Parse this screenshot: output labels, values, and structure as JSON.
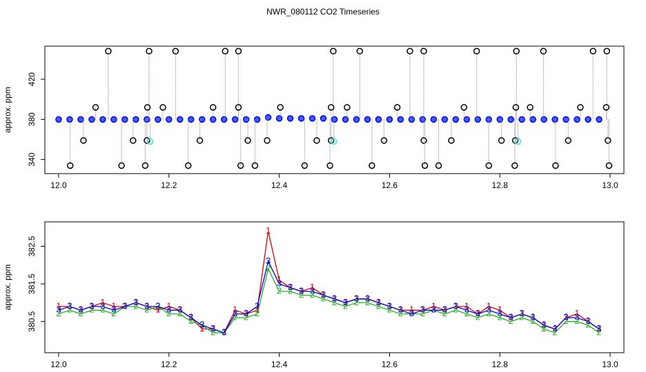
{
  "chart_data": [
    {
      "type": "scatter",
      "title": "NWR_080112  CO2 Timeseries",
      "y_label": "approx. ppm",
      "xlim": [
        11.975,
        13.025
      ],
      "ylim": [
        326,
        453
      ],
      "xticks": [
        {
          "value": 12,
          "label": "12.0"
        },
        12.2,
        12.4,
        12.6,
        12.8,
        {
          "value": 13,
          "label": "13.0"
        }
      ],
      "yticks": [
        340,
        380,
        420
      ],
      "series": [
        {
          "color": "#0000ff",
          "x": [
            12.0,
            12.02,
            12.04,
            12.06,
            12.08,
            12.1,
            12.12,
            12.14,
            12.16,
            12.18,
            12.2,
            12.22,
            12.24,
            12.26,
            12.28,
            12.3,
            12.32,
            12.34,
            12.36,
            12.38,
            12.4,
            12.42,
            12.44,
            12.46,
            12.48,
            12.5,
            12.52,
            12.54,
            12.56,
            12.58,
            12.6,
            12.62,
            12.64,
            12.66,
            12.68,
            12.7,
            12.72,
            12.74,
            12.76,
            12.78,
            12.8,
            12.82,
            12.84,
            12.86,
            12.88,
            12.9,
            12.92,
            12.94,
            12.96,
            12.98
          ],
          "values": [
            380,
            380,
            380,
            380,
            380,
            380,
            380,
            380,
            380,
            380,
            380,
            380,
            380,
            380,
            380,
            380,
            380,
            380,
            380,
            382,
            381,
            381,
            381,
            381,
            381,
            380,
            380,
            380,
            380,
            380,
            380,
            380,
            380,
            380,
            380,
            380,
            380,
            380,
            380,
            380,
            380,
            380,
            380,
            380,
            380,
            380,
            380,
            380,
            380,
            380
          ]
        },
        {
          "color": "#000000",
          "x": [
            12.09,
            12.164,
            12.212,
            12.302,
            12.326,
            12.498,
            12.546,
            12.637,
            12.662,
            12.758,
            12.83,
            12.879,
            12.969,
            12.994,
            12.067,
            12.161,
            12.189,
            12.28,
            12.326,
            12.402,
            12.494,
            12.523,
            12.614,
            12.735,
            12.829,
            12.855,
            12.946,
            12.993,
            12.045,
            12.135,
            12.16,
            12.256,
            12.343,
            12.378,
            12.468,
            12.494,
            12.59,
            12.662,
            12.712,
            12.803,
            12.828,
            12.924,
            12.996,
            12.021,
            12.114,
            12.157,
            12.235,
            12.33,
            12.356,
            12.446,
            12.492,
            12.568,
            12.664,
            12.689,
            12.78,
            12.827,
            12.901,
            12.998
          ],
          "values": [
            448,
            448,
            448,
            448,
            448,
            448,
            448,
            448,
            448,
            448,
            448,
            448,
            448,
            448,
            392,
            392,
            392,
            392,
            392,
            392,
            392,
            392,
            392,
            392,
            392,
            392,
            392,
            392,
            359,
            359,
            359,
            359,
            359,
            359,
            359,
            359,
            359,
            359,
            359,
            359,
            359,
            359,
            359,
            334,
            334,
            334,
            334,
            334,
            334,
            334,
            334,
            334,
            334,
            334,
            334,
            334,
            334,
            334
          ]
        },
        {
          "color": "#40e0e0",
          "x": [
            12.166,
            12.499,
            12.833
          ],
          "values": [
            358,
            358,
            358
          ]
        }
      ]
    },
    {
      "type": "line",
      "y_label": "approx. ppm",
      "xlim": [
        11.975,
        13.025
      ],
      "ylim": [
        379.67,
        383.15
      ],
      "xticks": [
        {
          "value": 12,
          "label": "12.0"
        },
        12.2,
        12.4,
        12.6,
        12.8,
        {
          "value": 13,
          "label": "13.0"
        }
      ],
      "yticks": [
        380.5,
        381.5,
        382.5
      ],
      "x": [
        12.0,
        12.02,
        12.04,
        12.06,
        12.08,
        12.1,
        12.12,
        12.14,
        12.16,
        12.18,
        12.2,
        12.22,
        12.24,
        12.26,
        12.28,
        12.3,
        12.32,
        12.34,
        12.36,
        12.38,
        12.4,
        12.42,
        12.44,
        12.46,
        12.48,
        12.5,
        12.52,
        12.54,
        12.56,
        12.58,
        12.6,
        12.62,
        12.64,
        12.66,
        12.68,
        12.7,
        12.72,
        12.74,
        12.76,
        12.78,
        12.8,
        12.82,
        12.84,
        12.86,
        12.88,
        12.9,
        12.92,
        12.94,
        12.96,
        12.98
      ],
      "series": [
        {
          "marker": "1",
          "color": "#e00000",
          "values": [
            380.9,
            380.9,
            380.8,
            380.9,
            381.0,
            380.9,
            380.9,
            381.0,
            380.9,
            380.8,
            380.9,
            380.8,
            380.6,
            380.3,
            380.3,
            380.2,
            380.8,
            380.7,
            380.8,
            382.9,
            381.6,
            381.4,
            381.3,
            381.4,
            381.2,
            381.1,
            381.0,
            381.1,
            381.1,
            381.0,
            380.9,
            380.8,
            380.8,
            380.8,
            380.9,
            380.8,
            380.9,
            380.9,
            380.7,
            380.9,
            380.8,
            380.6,
            380.7,
            380.6,
            380.4,
            380.3,
            380.6,
            380.7,
            380.5,
            380.3
          ]
        },
        {
          "marker": "2",
          "color": "#20b020",
          "values": [
            380.7,
            380.8,
            380.7,
            380.8,
            380.8,
            380.7,
            380.9,
            380.9,
            380.8,
            380.9,
            380.7,
            380.7,
            380.5,
            380.4,
            380.2,
            380.2,
            380.6,
            380.6,
            380.7,
            381.9,
            381.3,
            381.3,
            381.2,
            381.2,
            381.1,
            381.0,
            380.9,
            381.0,
            381.0,
            380.9,
            380.8,
            380.7,
            380.7,
            380.7,
            380.8,
            380.7,
            380.8,
            380.7,
            380.6,
            380.7,
            380.6,
            380.5,
            380.6,
            380.5,
            380.3,
            380.2,
            380.5,
            380.5,
            380.4,
            380.2
          ]
        },
        {
          "marker": "3",
          "color": "#0000e0",
          "values": [
            380.8,
            380.9,
            380.8,
            380.9,
            380.9,
            380.8,
            380.9,
            381.0,
            380.9,
            380.9,
            380.8,
            380.8,
            380.6,
            380.4,
            380.3,
            380.2,
            380.7,
            380.7,
            380.9,
            382.1,
            381.5,
            381.4,
            381.3,
            381.3,
            381.2,
            381.1,
            381.0,
            381.1,
            381.1,
            381.0,
            380.9,
            380.8,
            380.7,
            380.8,
            380.8,
            380.8,
            380.9,
            380.8,
            380.7,
            380.8,
            380.7,
            380.6,
            380.7,
            380.6,
            380.4,
            380.3,
            380.6,
            380.6,
            380.5,
            380.3
          ]
        }
      ]
    }
  ]
}
